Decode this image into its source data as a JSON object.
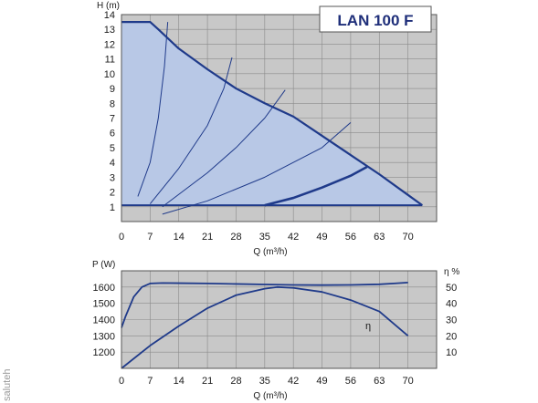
{
  "watermark": "saluteh",
  "colors": {
    "plot_bg": "#c8c8c8",
    "grid": "#8a8a8a",
    "curve": "#1f3a8a",
    "area_fill": "#b8c8e6",
    "title": "#1f2f7a"
  },
  "chart_data": [
    {
      "type": "line",
      "title": "LAN 100 F",
      "xlabel": "Q (m³/h)",
      "ylabel": "H (m)",
      "xlim": [
        0,
        77
      ],
      "ylim": [
        0,
        14
      ],
      "xticks": [
        0,
        7,
        14,
        21,
        28,
        35,
        42,
        49,
        56,
        63,
        70
      ],
      "yticks": [
        1,
        2,
        3,
        4,
        5,
        6,
        7,
        8,
        9,
        10,
        11,
        12,
        13,
        14
      ],
      "grid": true,
      "shaded_region": "operating range between max curve and H = 1 m",
      "series": [
        {
          "x": [
            0,
            7,
            9,
            14,
            21,
            28,
            35,
            42,
            49,
            56,
            63,
            70,
            73.5
          ],
          "y": [
            13.5,
            13.5,
            13.0,
            11.7,
            10.3,
            9.0,
            8.0,
            7.1,
            5.8,
            4.5,
            3.2,
            1.8,
            1.1
          ]
        },
        {
          "x": [
            4,
            7,
            9,
            10.5,
            11.3
          ],
          "y": [
            1.7,
            4.0,
            7.0,
            10.5,
            13.5
          ]
        },
        {
          "x": [
            7,
            14,
            21,
            25,
            27
          ],
          "y": [
            1.2,
            3.6,
            6.5,
            9.0,
            11.1
          ]
        },
        {
          "x": [
            10,
            21,
            28,
            35,
            40
          ],
          "y": [
            1.0,
            3.3,
            5.0,
            7.0,
            8.9
          ]
        },
        {
          "x": [
            10,
            21,
            35,
            49,
            56
          ],
          "y": [
            0.5,
            1.4,
            3.0,
            5.0,
            6.7
          ]
        },
        {
          "x": [
            35,
            42,
            49,
            56,
            60
          ],
          "y": [
            1.1,
            1.6,
            2.3,
            3.1,
            3.7
          ]
        },
        {
          "x": [
            0,
            73.5
          ],
          "y": [
            1.1,
            1.1
          ]
        }
      ]
    },
    {
      "type": "line",
      "xlabel": "Q (m³/h)",
      "ylabel": "P (W)",
      "ylabel_right": "η %",
      "xlim": [
        0,
        77
      ],
      "ylim": [
        1100,
        1700
      ],
      "ylim_right": [
        0,
        60
      ],
      "xticks": [
        0,
        7,
        14,
        21,
        28,
        35,
        42,
        49,
        56,
        63,
        70
      ],
      "yticks": [
        1200,
        1300,
        1400,
        1500,
        1600
      ],
      "yticks_right": [
        10,
        20,
        30,
        40,
        50
      ],
      "grid": true,
      "annotations": [
        "η"
      ],
      "series": [
        {
          "axis": "left",
          "x": [
            0,
            1,
            3,
            5,
            7,
            10,
            14,
            21,
            28,
            35,
            42,
            49,
            56,
            63,
            67,
            70
          ],
          "y": [
            1350,
            1420,
            1540,
            1600,
            1622,
            1625,
            1624,
            1622,
            1619,
            1616,
            1613,
            1612,
            1613,
            1617,
            1623,
            1628
          ]
        },
        {
          "axis": "right",
          "x": [
            0,
            7,
            14,
            21,
            28,
            35,
            38,
            42,
            49,
            56,
            63,
            70
          ],
          "y": [
            0,
            14,
            26,
            37,
            45,
            49,
            50,
            49.5,
            47,
            42,
            35,
            20
          ]
        }
      ]
    }
  ]
}
